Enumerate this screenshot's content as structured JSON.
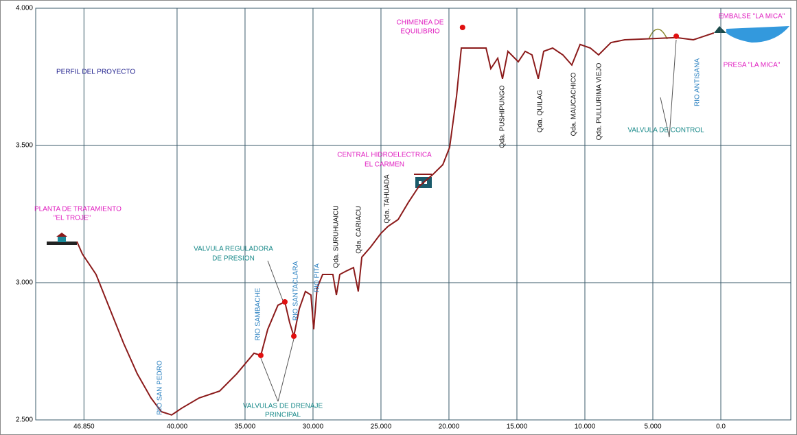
{
  "chart_data": {
    "type": "line",
    "x": [
      47370,
      46970,
      45960,
      44950,
      43940,
      42930,
      41920,
      41160,
      40400,
      39650,
      38380,
      36870,
      35610,
      34340,
      33840,
      33330,
      32580,
      32070,
      31720,
      31410,
      31010,
      30560,
      30150,
      29950,
      29700,
      29290,
      28540,
      28280,
      28030,
      27530,
      27020,
      26670,
      26410,
      25760,
      25000,
      24490,
      23740,
      22980,
      22220,
      21210,
      20450,
      19950,
      19440,
      19090,
      18690,
      17270,
      16920,
      16410,
      16060,
      15660,
      14900,
      14390,
      13890,
      13430,
      13030,
      12370,
      11620,
      10960,
      10350,
      9600,
      8990,
      8080,
      7070,
      5560,
      3280,
      2020,
      510
    ],
    "values": [
      3150,
      3105,
      3030,
      2905,
      2780,
      2668,
      2580,
      2530,
      2518,
      2543,
      2580,
      2605,
      2668,
      2743,
      2735,
      2830,
      2918,
      2930,
      2855,
      2805,
      2905,
      2968,
      2955,
      2830,
      2980,
      3030,
      3030,
      2955,
      3030,
      3043,
      3055,
      2968,
      3093,
      3130,
      3180,
      3205,
      3230,
      3293,
      3350,
      3393,
      3430,
      3493,
      3680,
      3855,
      3855,
      3855,
      3780,
      3818,
      3743,
      3843,
      3805,
      3843,
      3830,
      3743,
      3843,
      3855,
      3830,
      3793,
      3868,
      3855,
      3830,
      3875,
      3885,
      3888,
      3893,
      3885,
      3910
    ],
    "color": "#8b1a1a",
    "markers": {
      "x": [
        19000,
        33840,
        32070,
        31410,
        3280
      ],
      "values": [
        3930,
        2735,
        2930,
        2805,
        3898
      ],
      "color": "#e01010"
    },
    "xlim": [
      50400,
      -5150
    ],
    "xticks": [
      {
        "value": 46850,
        "label": "46.850"
      },
      {
        "value": 40000,
        "label": "40.000"
      },
      {
        "value": 35000,
        "label": "35.000"
      },
      {
        "value": 30000,
        "label": "30.000"
      },
      {
        "value": 25000,
        "label": "25.000"
      },
      {
        "value": 20000,
        "label": "20.000"
      },
      {
        "value": 15000,
        "label": "15.000"
      },
      {
        "value": 10000,
        "label": "10.000"
      },
      {
        "value": 5000,
        "label": "5.000"
      },
      {
        "value": 0,
        "label": "0.0"
      }
    ],
    "ylim": [
      2500,
      4000
    ],
    "yticks": [
      {
        "value": 2500,
        "label": "2.500"
      },
      {
        "value": 3000,
        "label": "3.000"
      },
      {
        "value": 3500,
        "label": "3.500"
      },
      {
        "value": 4000,
        "label": "4.000"
      }
    ],
    "grid": true,
    "annotations": [
      "PERFIL DEL PROYECTO",
      "PLANTA DE TRATAMIENTO",
      "\"EL TROJE\"",
      "RIO SAN PEDRO",
      "VALVULA REGULADORA",
      "DE PRESION",
      "RIO SAMBACHE",
      "RIO SANTACLARA",
      "RIO PITA",
      "Qda. SURUHUAICU",
      "Qda. CARIACU",
      "Qda. TAHUADA",
      "CENTRAL HIDROELECTRICA",
      "EL CARMEN",
      "CHIMENEA DE",
      "EQUILIBRIO",
      "Qda. PUSHIPUNGO",
      "Qda. QUILAG",
      "Qda. MAUCACHICO",
      "Qda. PULLURIMA VIEJO",
      "VALVULA DE CONTROL",
      "RIO ANTISANA",
      "EMBALSE \"LA MICA\"",
      "PRESA \"LA MICA\"",
      "VALVULAS DE DRENAJE",
      "PRINCIPAL"
    ]
  }
}
